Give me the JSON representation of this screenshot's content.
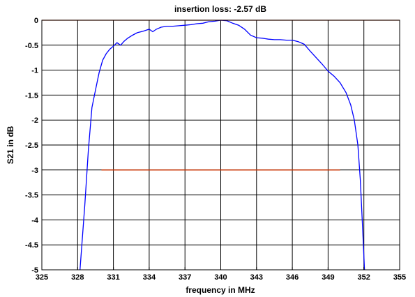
{
  "chart_data": {
    "type": "line",
    "title": "insertion loss: -2.57  dB",
    "xlabel": "frequency in MHz",
    "ylabel": "S21 in dB",
    "xlim": [
      325,
      355
    ],
    "ylim": [
      -5,
      0
    ],
    "xticks": [
      "325",
      "328",
      "331",
      "334",
      "337",
      "340",
      "343",
      "346",
      "349",
      "352",
      "355"
    ],
    "yticks": [
      "0",
      "-0.5",
      "-1",
      "-1.5",
      "-2",
      "-2.5",
      "-3",
      "-3.5",
      "-4",
      "-4.5",
      "-5"
    ],
    "grid": true,
    "series": [
      {
        "color": "#0000ff",
        "x": [
          328.2,
          328.6,
          328.9,
          329.2,
          329.5,
          329.8,
          330.1,
          330.4,
          330.7,
          331.0,
          331.3,
          331.6,
          331.9,
          332.2,
          332.6,
          333.0,
          333.5,
          334.0,
          334.3,
          334.6,
          335.0,
          335.5,
          336.0,
          336.5,
          337.0,
          337.5,
          338.0,
          338.5,
          339.0,
          339.5,
          340.0,
          340.5,
          341.0,
          341.5,
          342.0,
          342.5,
          343.0,
          343.5,
          344.0,
          344.5,
          345.0,
          345.5,
          346.0,
          346.5,
          347.0,
          347.5,
          348.0,
          348.5,
          349.0,
          349.5,
          350.0,
          350.5,
          350.9,
          351.2,
          351.5,
          351.7,
          351.9,
          352.05
        ],
        "y": [
          -5.0,
          -3.7,
          -2.6,
          -1.75,
          -1.4,
          -1.05,
          -0.8,
          -0.67,
          -0.58,
          -0.52,
          -0.45,
          -0.5,
          -0.42,
          -0.36,
          -0.3,
          -0.25,
          -0.22,
          -0.18,
          -0.23,
          -0.18,
          -0.14,
          -0.12,
          -0.12,
          -0.11,
          -0.1,
          -0.09,
          -0.07,
          -0.06,
          -0.03,
          -0.02,
          0.0,
          -0.01,
          -0.06,
          -0.1,
          -0.18,
          -0.3,
          -0.35,
          -0.36,
          -0.38,
          -0.39,
          -0.39,
          -0.4,
          -0.4,
          -0.43,
          -0.48,
          -0.62,
          -0.75,
          -0.88,
          -1.02,
          -1.12,
          -1.25,
          -1.45,
          -1.7,
          -2.0,
          -2.5,
          -3.2,
          -4.2,
          -5.0
        ]
      },
      {
        "color": "#cc3300",
        "x": [
          330,
          350
        ],
        "y": [
          -3,
          -3
        ]
      },
      {
        "color": "#cc3300",
        "x": [
          325,
          355
        ],
        "y": [
          0,
          0
        ]
      }
    ]
  }
}
